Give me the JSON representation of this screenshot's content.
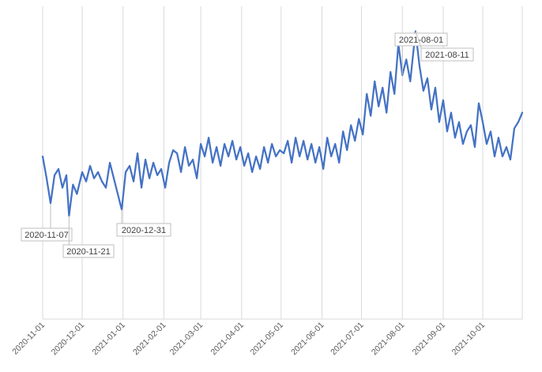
{
  "chart_data": {
    "type": "line",
    "title": "",
    "xlabel": "",
    "ylabel": "",
    "x_axis_type": "date",
    "x_start": "2020-11-01",
    "x_end": "2021-10-31",
    "ylim": [
      0,
      100
    ],
    "grid": "vertical",
    "legend": "none",
    "line_color": "#4472c4",
    "tick_labels": [
      "2020-11-01",
      "2020-12-01",
      "2021-01-01",
      "2021-02-01",
      "2021-03-01",
      "2021-04-01",
      "2021-05-01",
      "2021-06-01",
      "2021-07-01",
      "2021-08-01",
      "2021-09-01",
      "2021-10-01"
    ],
    "series": [
      {
        "x": [
          "2020-11-01",
          "2020-11-04",
          "2020-11-07",
          "2020-11-10",
          "2020-11-13",
          "2020-11-16",
          "2020-11-19",
          "2020-11-21",
          "2020-11-24",
          "2020-11-27",
          "2020-12-01",
          "2020-12-04",
          "2020-12-07",
          "2020-12-10",
          "2020-12-13",
          "2020-12-16",
          "2020-12-19",
          "2020-12-22",
          "2020-12-25",
          "2020-12-28",
          "2020-12-31",
          "2021-01-03",
          "2021-01-06",
          "2021-01-09",
          "2021-01-12",
          "2021-01-15",
          "2021-01-18",
          "2021-01-21",
          "2021-01-24",
          "2021-01-27",
          "2021-01-30",
          "2021-02-02",
          "2021-02-05",
          "2021-02-08",
          "2021-02-11",
          "2021-02-14",
          "2021-02-17",
          "2021-02-20",
          "2021-02-23",
          "2021-02-26",
          "2021-03-01",
          "2021-03-04",
          "2021-03-07",
          "2021-03-10",
          "2021-03-13",
          "2021-03-16",
          "2021-03-19",
          "2021-03-22",
          "2021-03-25",
          "2021-03-28",
          "2021-03-31",
          "2021-04-03",
          "2021-04-06",
          "2021-04-09",
          "2021-04-12",
          "2021-04-15",
          "2021-04-18",
          "2021-04-21",
          "2021-04-24",
          "2021-04-27",
          "2021-04-30",
          "2021-05-03",
          "2021-05-06",
          "2021-05-09",
          "2021-05-12",
          "2021-05-15",
          "2021-05-18",
          "2021-05-21",
          "2021-05-24",
          "2021-05-27",
          "2021-05-30",
          "2021-06-02",
          "2021-06-05",
          "2021-06-08",
          "2021-06-11",
          "2021-06-14",
          "2021-06-17",
          "2021-06-20",
          "2021-06-23",
          "2021-06-26",
          "2021-06-29",
          "2021-07-02",
          "2021-07-05",
          "2021-07-08",
          "2021-07-11",
          "2021-07-14",
          "2021-07-17",
          "2021-07-20",
          "2021-07-23",
          "2021-07-26",
          "2021-07-29",
          "2021-08-01",
          "2021-08-04",
          "2021-08-07",
          "2021-08-11",
          "2021-08-14",
          "2021-08-17",
          "2021-08-20",
          "2021-08-23",
          "2021-08-26",
          "2021-08-29",
          "2021-09-01",
          "2021-09-04",
          "2021-09-07",
          "2021-09-10",
          "2021-09-13",
          "2021-09-16",
          "2021-09-19",
          "2021-09-22",
          "2021-09-25",
          "2021-09-28",
          "2021-10-01",
          "2021-10-04",
          "2021-10-07",
          "2021-10-10",
          "2021-10-13",
          "2021-10-16",
          "2021-10-19",
          "2021-10-22",
          "2021-10-25",
          "2021-10-28",
          "2021-10-31"
        ],
        "values": [
          52,
          45,
          37,
          46,
          48,
          42,
          46,
          33,
          43,
          40,
          47,
          44,
          49,
          45,
          47,
          44,
          42,
          50,
          45,
          40,
          35,
          47,
          49,
          44,
          53,
          42,
          51,
          45,
          50,
          46,
          48,
          42,
          50,
          54,
          53,
          47,
          55,
          49,
          51,
          45,
          56,
          52,
          58,
          50,
          55,
          49,
          56,
          52,
          57,
          51,
          55,
          49,
          53,
          47,
          52,
          48,
          55,
          50,
          56,
          52,
          54,
          53,
          57,
          50,
          58,
          52,
          57,
          51,
          56,
          50,
          55,
          48,
          58,
          52,
          56,
          50,
          60,
          54,
          62,
          57,
          64,
          59,
          72,
          65,
          76,
          68,
          74,
          66,
          79,
          72,
          88,
          78,
          83,
          76,
          92,
          81,
          73,
          77,
          67,
          74,
          63,
          70,
          60,
          66,
          58,
          63,
          56,
          60,
          62,
          55,
          69,
          63,
          56,
          60,
          52,
          58,
          52,
          55,
          51,
          61,
          63,
          66
        ]
      }
    ],
    "annotations": [
      {
        "date": "2020-11-07",
        "label": "2020-11-07"
      },
      {
        "date": "2020-11-21",
        "label": "2020-11-21"
      },
      {
        "date": "2020-12-31",
        "label": "2020-12-31"
      },
      {
        "date": "2021-08-01",
        "label": "2021-08-01"
      },
      {
        "date": "2021-08-11",
        "label": "2021-08-11"
      }
    ]
  }
}
